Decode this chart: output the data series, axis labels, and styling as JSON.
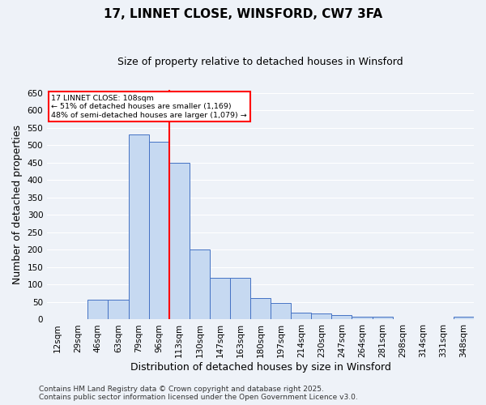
{
  "title": "17, LINNET CLOSE, WINSFORD, CW7 3FA",
  "subtitle": "Size of property relative to detached houses in Winsford",
  "xlabel": "Distribution of detached houses by size in Winsford",
  "ylabel": "Number of detached properties",
  "categories": [
    "12sqm",
    "29sqm",
    "46sqm",
    "63sqm",
    "79sqm",
    "96sqm",
    "113sqm",
    "130sqm",
    "147sqm",
    "163sqm",
    "180sqm",
    "197sqm",
    "214sqm",
    "230sqm",
    "247sqm",
    "264sqm",
    "281sqm",
    "298sqm",
    "314sqm",
    "331sqm",
    "348sqm"
  ],
  "values": [
    2,
    2,
    58,
    58,
    530,
    510,
    450,
    200,
    120,
    120,
    62,
    48,
    20,
    18,
    12,
    8,
    8,
    2,
    2,
    2,
    8
  ],
  "bar_color": "#c6d9f1",
  "bar_edge_color": "#4472c4",
  "vline_color": "red",
  "vline_x": 6.0,
  "annotation_line1": "17 LINNET CLOSE: 108sqm",
  "annotation_line2": "← 51% of detached houses are smaller (1,169)",
  "annotation_line3": "48% of semi-detached houses are larger (1,079) →",
  "annotation_box_color": "red",
  "ylim": [
    0,
    660
  ],
  "yticks": [
    0,
    50,
    100,
    150,
    200,
    250,
    300,
    350,
    400,
    450,
    500,
    550,
    600,
    650
  ],
  "footer_line1": "Contains HM Land Registry data © Crown copyright and database right 2025.",
  "footer_line2": "Contains public sector information licensed under the Open Government Licence v3.0.",
  "bg_color": "#eef2f8",
  "grid_color": "#ffffff",
  "plot_bg_color": "#eef2f8",
  "title_fontsize": 11,
  "subtitle_fontsize": 9,
  "label_fontsize": 9,
  "tick_fontsize": 7.5,
  "footer_fontsize": 6.5
}
